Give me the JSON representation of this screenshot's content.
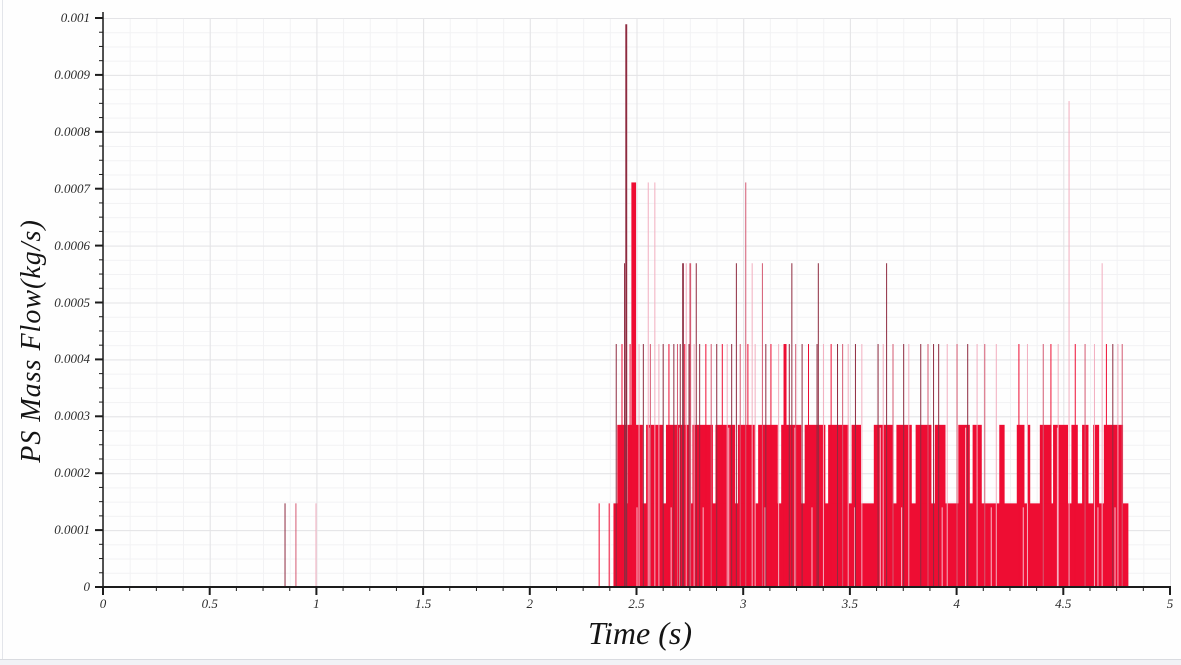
{
  "chart_data": {
    "type": "bar",
    "subtype": "impulse-spikes",
    "title": "",
    "xlabel": "Time (s)",
    "ylabel": "PS Mass Flow(kg/s)",
    "xlim": [
      0,
      5
    ],
    "ylim": [
      0,
      0.001
    ],
    "grid": {
      "show": true,
      "major_color": "#e4e4e7",
      "minor_color": "#f2f2f4",
      "x_minor_step": 0.125,
      "y_minor_step": 2.5e-05
    },
    "legend": "none",
    "x_axis": {
      "tick_values": [
        0,
        0.5,
        1,
        1.5,
        2,
        2.5,
        3,
        3.5,
        4,
        4.5,
        5
      ],
      "tick_labels": [
        "0",
        "0.5",
        "1",
        "1.5",
        "2",
        "2.5",
        "3",
        "3.5",
        "4",
        "4.5",
        "5"
      ]
    },
    "y_axis": {
      "tick_values": [
        0,
        0.0001,
        0.0002,
        0.0003,
        0.0004,
        0.0005,
        0.0006,
        0.0007,
        0.0008,
        0.0009,
        0.001
      ],
      "tick_labels": [
        "0",
        "0.0001",
        "0.0002",
        "0.0003",
        "0.0004",
        "0.0005",
        "0.0006",
        "0.0007",
        "0.0008",
        "0.0009",
        "0.001"
      ]
    },
    "colors": {
      "r": "#ee0d33",
      "d": "#8e2b40",
      "p": "#f2aebf",
      "m": "#d45a72",
      "streak": "#fab9c9",
      "axis": "#1c1c1c"
    },
    "quantum_kg_s": 0.000142,
    "base_blocks": [
      {
        "t0": 2.392,
        "t1": 4.805,
        "v": 0.000147
      }
    ],
    "level2_blocks": [
      [
        2.41,
        2.452
      ],
      [
        2.458,
        2.53
      ],
      [
        2.545,
        2.625
      ],
      [
        2.638,
        2.748
      ],
      [
        2.762,
        2.858
      ],
      [
        2.87,
        2.962
      ],
      [
        2.975,
        3.058
      ],
      [
        3.07,
        3.162
      ],
      [
        3.178,
        3.272
      ],
      [
        3.288,
        3.385
      ],
      [
        3.398,
        3.495
      ],
      [
        3.508,
        3.552
      ],
      [
        3.612,
        3.7
      ],
      [
        3.718,
        3.79
      ],
      [
        3.808,
        3.882
      ],
      [
        3.898,
        3.948
      ],
      [
        4.008,
        4.062
      ],
      [
        4.075,
        4.118
      ],
      [
        4.2,
        4.225
      ],
      [
        4.282,
        4.318
      ],
      [
        4.33,
        4.345
      ],
      [
        4.39,
        4.445
      ],
      [
        4.452,
        4.522
      ],
      [
        4.538,
        4.568
      ],
      [
        4.588,
        4.618
      ],
      [
        4.64,
        4.668
      ],
      [
        4.69,
        4.78
      ]
    ],
    "level2_value": 0.000285,
    "spikes": [
      [
        0.853,
        0.000147,
        "d"
      ],
      [
        0.904,
        0.000147,
        "m"
      ],
      [
        0.998,
        0.000147,
        "p"
      ],
      [
        2.325,
        0.000147,
        "r"
      ],
      [
        2.372,
        0.000147,
        "r"
      ],
      [
        2.452,
        0.000989,
        "d",
        0.009
      ],
      [
        2.487,
        0.000711,
        "r",
        0.022
      ],
      [
        2.555,
        0.000711,
        "p"
      ],
      [
        2.586,
        0.000711,
        "p"
      ],
      [
        3.012,
        0.000711,
        "m"
      ],
      [
        4.527,
        0.000854,
        "p"
      ],
      [
        2.444,
        0.000569,
        "d"
      ],
      [
        2.718,
        0.000569,
        "d",
        0.008
      ],
      [
        2.733,
        0.000569,
        "p"
      ],
      [
        2.752,
        0.000569,
        "m",
        0.008
      ],
      [
        2.78,
        0.000569,
        "d"
      ],
      [
        2.968,
        0.000569,
        "d"
      ],
      [
        3.042,
        0.000569,
        "p"
      ],
      [
        3.09,
        0.000569,
        "m"
      ],
      [
        3.228,
        0.000569,
        "d"
      ],
      [
        3.352,
        0.000569,
        "d"
      ],
      [
        3.672,
        0.000569,
        "d"
      ],
      [
        4.682,
        0.000569,
        "p"
      ],
      [
        2.405,
        0.000427,
        "d"
      ],
      [
        2.432,
        0.000427,
        "r"
      ],
      [
        2.47,
        0.000427,
        "r"
      ],
      [
        2.512,
        0.000427,
        "p"
      ],
      [
        2.532,
        0.000427,
        "d"
      ],
      [
        2.565,
        0.000427,
        "m"
      ],
      [
        2.605,
        0.000427,
        "p"
      ],
      [
        2.625,
        0.000427,
        "d"
      ],
      [
        2.652,
        0.000427,
        "r"
      ],
      [
        2.675,
        0.000427,
        "d"
      ],
      [
        2.692,
        0.000427,
        "m"
      ],
      [
        2.705,
        0.000427,
        "d"
      ],
      [
        2.726,
        0.000427,
        "r"
      ],
      [
        2.746,
        0.000427,
        "d"
      ],
      [
        2.77,
        0.000427,
        "p"
      ],
      [
        2.796,
        0.000427,
        "d"
      ],
      [
        2.825,
        0.000427,
        "r"
      ],
      [
        2.85,
        0.000427,
        "m"
      ],
      [
        2.876,
        0.000427,
        "d"
      ],
      [
        2.902,
        0.000427,
        "r"
      ],
      [
        2.925,
        0.000427,
        "p"
      ],
      [
        2.946,
        0.000427,
        "d"
      ],
      [
        2.986,
        0.000427,
        "m"
      ],
      [
        3.022,
        0.000427,
        "r"
      ],
      [
        3.056,
        0.000427,
        "p"
      ],
      [
        3.106,
        0.000427,
        "d"
      ],
      [
        3.13,
        0.000427,
        "r"
      ],
      [
        3.166,
        0.000427,
        "p"
      ],
      [
        3.196,
        0.000427,
        "r",
        0.014
      ],
      [
        3.216,
        0.000427,
        "d"
      ],
      [
        3.246,
        0.000427,
        "m"
      ],
      [
        3.276,
        0.000427,
        "d"
      ],
      [
        3.306,
        0.000427,
        "r"
      ],
      [
        3.346,
        0.000427,
        "d"
      ],
      [
        3.376,
        0.000427,
        "p"
      ],
      [
        3.412,
        0.000427,
        "r"
      ],
      [
        3.442,
        0.000427,
        "d"
      ],
      [
        3.466,
        0.000427,
        "m"
      ],
      [
        3.492,
        0.000427,
        "p"
      ],
      [
        3.526,
        0.000427,
        "d"
      ],
      [
        3.556,
        0.000427,
        "p"
      ],
      [
        3.632,
        0.000427,
        "d"
      ],
      [
        3.656,
        0.000427,
        "p"
      ],
      [
        3.702,
        0.000427,
        "m"
      ],
      [
        3.752,
        0.000427,
        "d"
      ],
      [
        3.776,
        0.000427,
        "p"
      ],
      [
        3.832,
        0.000427,
        "d"
      ],
      [
        3.866,
        0.000427,
        "m"
      ],
      [
        3.892,
        0.000427,
        "d"
      ],
      [
        3.916,
        0.000427,
        "d"
      ],
      [
        3.956,
        0.000427,
        "p"
      ],
      [
        4.002,
        0.000427,
        "m"
      ],
      [
        4.052,
        0.000427,
        "d"
      ],
      [
        4.096,
        0.000427,
        "p"
      ],
      [
        4.132,
        0.000427,
        "m"
      ],
      [
        4.186,
        0.000427,
        "p"
      ],
      [
        4.292,
        0.000427,
        "r"
      ],
      [
        4.332,
        0.000427,
        "p"
      ],
      [
        4.406,
        0.000427,
        "m"
      ],
      [
        4.442,
        0.000427,
        "r"
      ],
      [
        4.476,
        0.000427,
        "p"
      ],
      [
        4.556,
        0.000427,
        "r"
      ],
      [
        4.602,
        0.000427,
        "m"
      ],
      [
        4.646,
        0.000427,
        "p"
      ],
      [
        4.702,
        0.000427,
        "r"
      ],
      [
        4.732,
        0.000427,
        "d"
      ],
      [
        4.756,
        0.000427,
        "p"
      ],
      [
        4.776,
        0.000427,
        "m"
      ]
    ],
    "streaks": [
      [
        2.5,
        0.00014
      ],
      [
        2.56,
        0.00028
      ],
      [
        2.66,
        0.00014
      ],
      [
        2.7,
        0.00028
      ],
      [
        2.81,
        0.00014
      ],
      [
        2.93,
        0.00028
      ],
      [
        3.1,
        0.00014
      ],
      [
        3.24,
        0.00028
      ],
      [
        3.32,
        0.00014
      ],
      [
        3.52,
        0.00014
      ],
      [
        3.64,
        0.00028
      ],
      [
        3.74,
        0.00014
      ],
      [
        3.93,
        0.00014
      ],
      [
        4.04,
        0.00028
      ],
      [
        4.16,
        0.00014
      ],
      [
        4.31,
        0.00014
      ],
      [
        4.47,
        0.00028
      ],
      [
        4.66,
        0.00014
      ],
      [
        4.74,
        0.00014
      ]
    ]
  }
}
